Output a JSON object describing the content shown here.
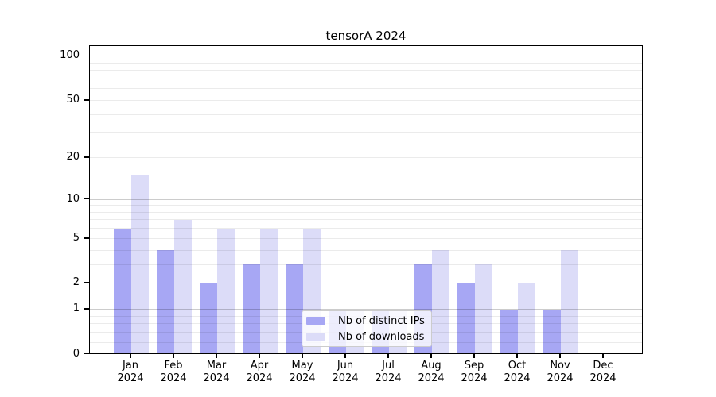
{
  "chart_data": {
    "type": "bar",
    "title": "tensorA 2024",
    "year": "2024",
    "months": [
      "Jan",
      "Feb",
      "Mar",
      "Apr",
      "May",
      "Jun",
      "Jul",
      "Aug",
      "Sep",
      "Oct",
      "Nov",
      "Dec"
    ],
    "categories": [
      "Jan 2024",
      "Feb 2024",
      "Mar 2024",
      "Apr 2024",
      "May 2024",
      "Jun 2024",
      "Jul 2024",
      "Aug 2024",
      "Sep 2024",
      "Oct 2024",
      "Nov 2024",
      "Dec 2024"
    ],
    "series": [
      {
        "name": "Nb of distinct IPs",
        "color": "#a7a7f4",
        "values": [
          6,
          4,
          2,
          3,
          3,
          1,
          1,
          3,
          2,
          1,
          1,
          0
        ]
      },
      {
        "name": "Nb of downloads",
        "color": "#dcdcf8",
        "values": [
          15,
          7,
          6,
          6,
          6,
          1,
          1,
          4,
          3,
          2,
          4,
          0
        ]
      }
    ],
    "xlabel": "",
    "ylabel": "",
    "yscale": "symlog-log1p",
    "ylim": [
      0,
      118
    ],
    "yticks": [
      0,
      1,
      2,
      5,
      10,
      20,
      50,
      100
    ],
    "major_gridlines": [
      1,
      10,
      100
    ],
    "minor_gridlines": [
      0.2,
      0.4,
      0.6,
      0.8,
      2,
      3,
      4,
      5,
      6,
      7,
      8,
      9,
      20,
      30,
      40,
      50,
      60,
      70,
      80,
      90
    ],
    "grid": true,
    "legend": {
      "position": "lower-center",
      "items": [
        "Nb of distinct IPs",
        "Nb of downloads"
      ]
    }
  }
}
